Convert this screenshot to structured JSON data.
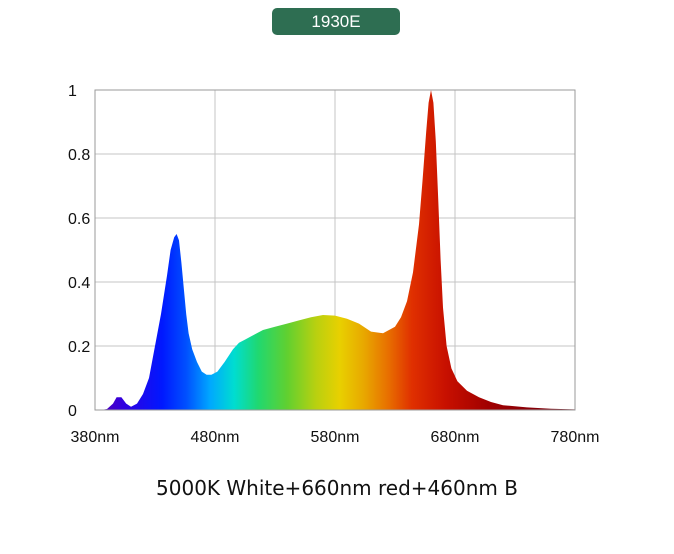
{
  "badge": {
    "label": "1930E",
    "color": "#2e6e52"
  },
  "caption": "5000K White+660nm red+460nm B",
  "chart_data": {
    "type": "area",
    "title": "",
    "xlabel": "",
    "ylabel": "",
    "xlim": [
      380,
      780
    ],
    "ylim": [
      0,
      1
    ],
    "grid": true,
    "x_ticks": [
      380,
      480,
      580,
      680,
      780
    ],
    "x_tick_labels": [
      "380nm",
      "480nm",
      "580nm",
      "680nm",
      "780nm"
    ],
    "y_ticks": [
      0,
      0.2,
      0.4,
      0.6,
      0.8,
      1
    ],
    "y_tick_labels": [
      "0",
      "0.2",
      "0.4",
      "0.6",
      "0.8",
      "1"
    ],
    "fill": "visible-spectrum gradient",
    "series": [
      {
        "x": [
          380,
          385,
          390,
          395,
          398,
          402,
          406,
          410,
          415,
          420,
          425,
          430,
          435,
          440,
          443,
          446,
          448,
          450,
          452,
          454,
          456,
          458,
          461,
          465,
          469,
          473,
          477,
          482,
          488,
          495,
          500,
          505,
          510,
          520,
          530,
          540,
          550,
          560,
          570,
          580,
          590,
          600,
          610,
          620,
          630,
          635,
          640,
          645,
          650,
          653,
          656,
          658,
          660,
          662,
          664,
          666,
          668,
          670,
          673,
          677,
          682,
          690,
          700,
          710,
          720,
          740,
          760,
          780
        ],
        "y": [
          0.0,
          0.0,
          0.003,
          0.02,
          0.04,
          0.04,
          0.02,
          0.01,
          0.02,
          0.05,
          0.1,
          0.2,
          0.3,
          0.42,
          0.5,
          0.54,
          0.55,
          0.53,
          0.46,
          0.38,
          0.3,
          0.24,
          0.19,
          0.15,
          0.12,
          0.11,
          0.11,
          0.12,
          0.15,
          0.19,
          0.21,
          0.22,
          0.23,
          0.25,
          0.26,
          0.27,
          0.28,
          0.29,
          0.297,
          0.295,
          0.285,
          0.27,
          0.245,
          0.24,
          0.26,
          0.29,
          0.34,
          0.43,
          0.58,
          0.72,
          0.87,
          0.96,
          1.0,
          0.96,
          0.84,
          0.66,
          0.47,
          0.32,
          0.2,
          0.13,
          0.09,
          0.06,
          0.04,
          0.025,
          0.015,
          0.008,
          0.004,
          0.002
        ]
      }
    ]
  }
}
